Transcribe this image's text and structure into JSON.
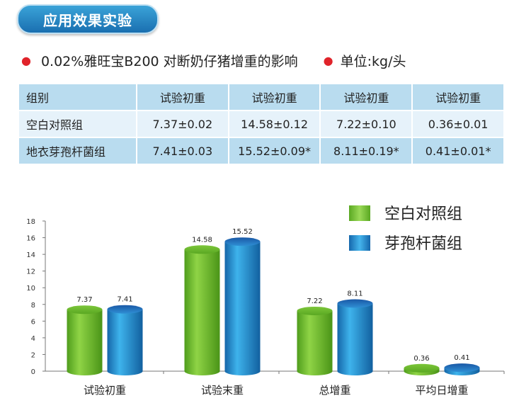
{
  "badge_title": "应用效果实验",
  "subtitle": "0.02%雅旺宝B200 对断奶仔猪增重的影响",
  "unit": "单位:kg/头",
  "table": {
    "headers": [
      "组别",
      "试验初重",
      "试验初重",
      "试验初重",
      "试验初重"
    ],
    "rows": [
      [
        "空白对照组",
        "7.37±0.02",
        "14.58±0.12",
        "7.22±0.10",
        "0.36±0.01"
      ],
      [
        "地衣芽孢杆菌组",
        "7.41±0.03",
        "15.52±0.09*",
        "8.11±0.19*",
        "0.41±0.01*"
      ]
    ]
  },
  "colors": {
    "green": "#6cbd2c",
    "blue": "#1f86c6"
  },
  "chart_data": {
    "type": "bar",
    "categories": [
      "试验初重",
      "试验末重",
      "总增重",
      "平均日增重"
    ],
    "series": [
      {
        "name": "空白对照组",
        "values": [
          7.37,
          14.58,
          7.22,
          0.36
        ],
        "labels": [
          "7.37",
          "14.58",
          "7.22",
          "0.36"
        ]
      },
      {
        "name": "芽孢杆菌组",
        "values": [
          7.41,
          15.52,
          8.11,
          0.41
        ],
        "labels": [
          "7.41",
          "15.52",
          "8.11",
          "0.41"
        ]
      }
    ],
    "ylim": [
      0,
      18
    ],
    "yticks": [
      "0",
      "2",
      "4",
      "6",
      "8",
      "10",
      "12",
      "14",
      "16",
      "18"
    ],
    "legend": "top-right",
    "grid": false,
    "style": "3d-cylinder"
  }
}
